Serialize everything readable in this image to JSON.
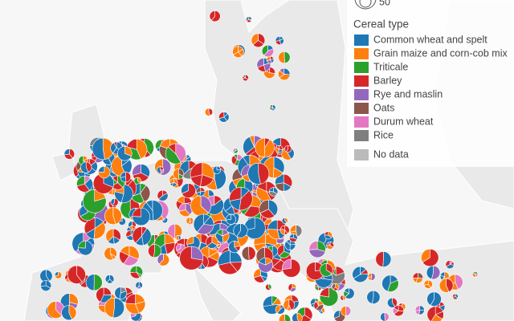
{
  "size_legend": {
    "label": "50"
  },
  "legend": {
    "title": "Cereal type",
    "items": [
      {
        "name": "Common wheat and spelt",
        "color": "#1f77b4"
      },
      {
        "name": "Grain maize and corn-cob mix",
        "color": "#ff7f0e"
      },
      {
        "name": "Triticale",
        "color": "#2ca02c"
      },
      {
        "name": "Barley",
        "color": "#d62728"
      },
      {
        "name": "Rye and maslin",
        "color": "#9467bd"
      },
      {
        "name": "Oats",
        "color": "#8c564b"
      },
      {
        "name": "Durum wheat",
        "color": "#e377c2"
      },
      {
        "name": "Rice",
        "color": "#7f7f7f"
      }
    ],
    "no_data": {
      "name": "No data",
      "color": "#bbbbbb"
    }
  }
}
